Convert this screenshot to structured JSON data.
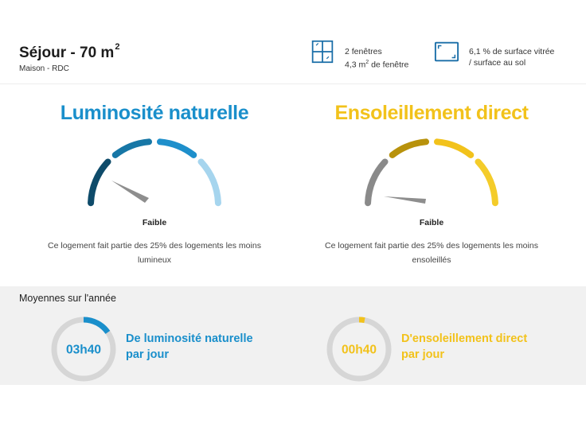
{
  "room": {
    "title": "Séjour - 70 m",
    "title_sup": "2",
    "subtitle": "Maison - RDC"
  },
  "stats": {
    "windows": {
      "icon": "window-icon",
      "line1": "2 fenêtres",
      "line2_pre": "4,3 m",
      "line2_sup": "2",
      "line2_post": " de fenêtre"
    },
    "glazing": {
      "icon": "glazed-surface-icon",
      "line1": "6,1 % de surface vitrée",
      "line2": "/ surface au sol"
    }
  },
  "luminosity": {
    "title": "Luminosité naturelle",
    "level": "Faible",
    "description": "Ce logement fait partie des 25% des logements les moins lumineux",
    "colors": [
      "#0e4b6a",
      "#1777a6",
      "#1e8fcb",
      "#a6d5ee"
    ],
    "needle_color": "#8e8e8e"
  },
  "sunshine": {
    "title": "Ensoleillement direct",
    "level": "Faible",
    "description": "Ce logement fait partie des 25% des logements les moins ensoleillés",
    "colors": [
      "#8a8a8a",
      "#b8920c",
      "#f2c21b",
      "#f4cc2a"
    ],
    "needle_color": "#8e8e8e"
  },
  "annual": {
    "title": "Moyennes sur l'année",
    "luminosity": {
      "value": "03h40",
      "label_line1": "De luminosité naturelle",
      "label_line2": "par jour",
      "fraction": 0.153,
      "color": "#1a8fcb"
    },
    "sunshine": {
      "value": "00h40",
      "label_line1": "D'ensoleillement direct",
      "label_line2": "par jour",
      "fraction": 0.03,
      "color": "#f2c21b"
    }
  }
}
